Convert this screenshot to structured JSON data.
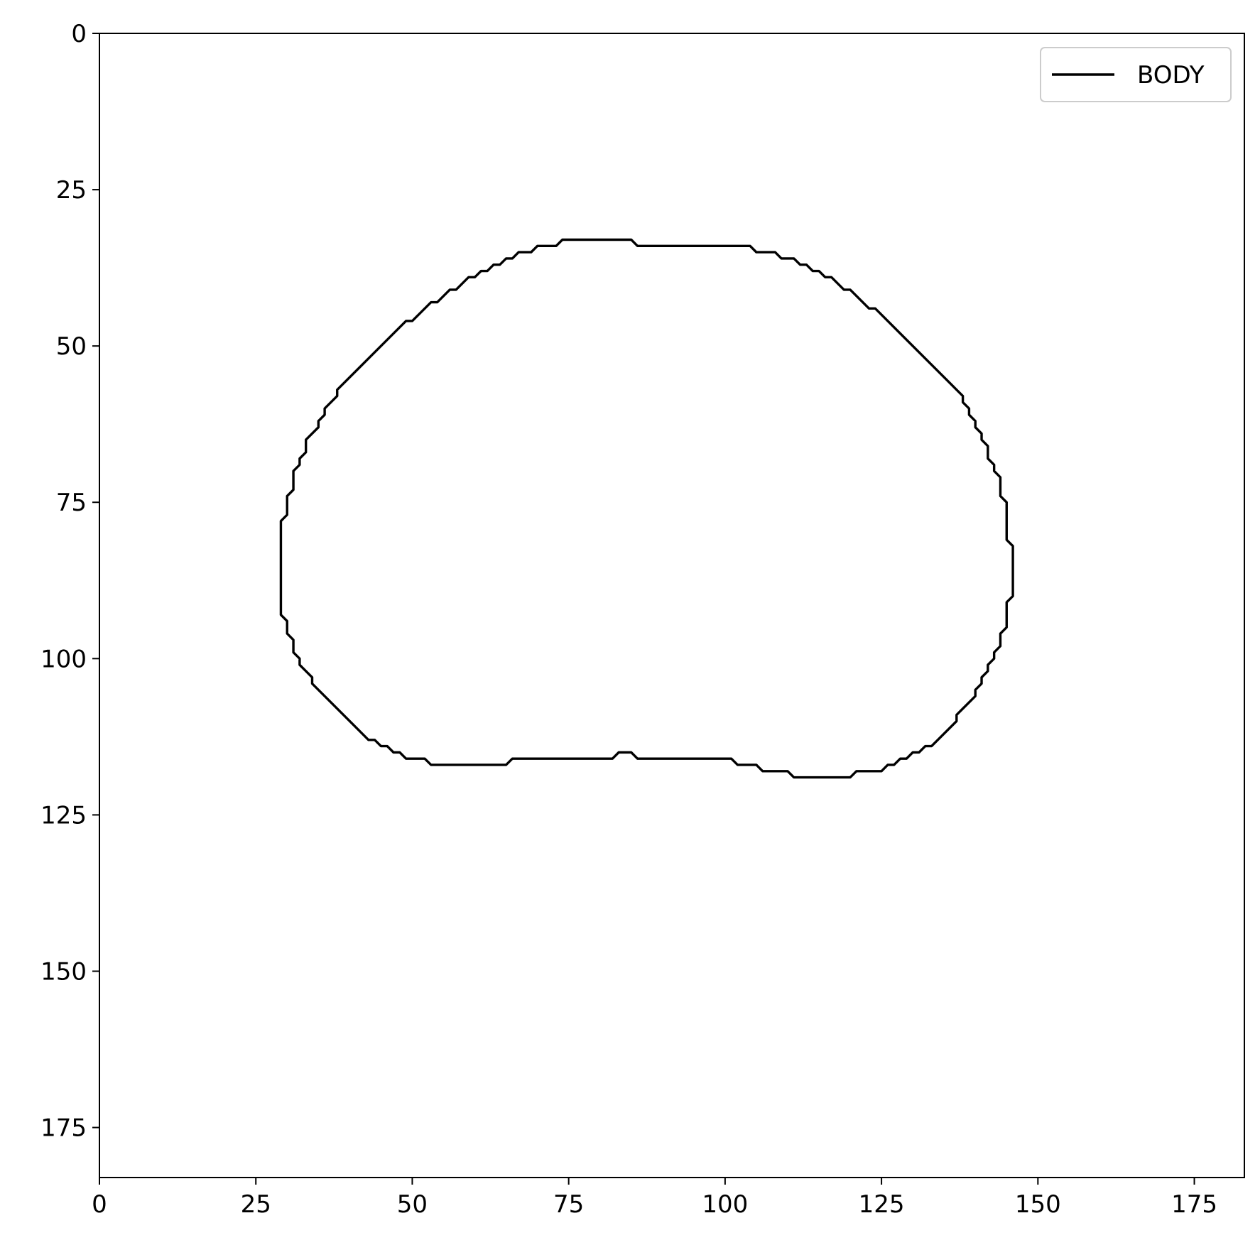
{
  "chart_data": {
    "type": "line",
    "title": "",
    "xlabel": "",
    "ylabel": "",
    "xlim": [
      0,
      183
    ],
    "ylim": [
      183,
      0
    ],
    "y_inverted": true,
    "grid": false,
    "legend": {
      "position": "top-right",
      "entries": [
        "BODY"
      ]
    },
    "xticks": [
      0,
      25,
      50,
      75,
      100,
      125,
      150,
      175
    ],
    "yticks": [
      0,
      25,
      50,
      75,
      100,
      125,
      150,
      175
    ],
    "xtick_labels": [
      "0",
      "25",
      "50",
      "75",
      "100",
      "125",
      "150",
      "175"
    ],
    "ytick_labels": [
      "0",
      "25",
      "50",
      "75",
      "100",
      "125",
      "150",
      "175"
    ],
    "series": [
      {
        "name": "BODY",
        "color": "#000000",
        "closed": true,
        "points": [
          [
            75,
            33
          ],
          [
            85,
            33
          ],
          [
            86,
            34
          ],
          [
            104,
            34
          ],
          [
            105,
            35
          ],
          [
            108,
            35
          ],
          [
            109,
            36
          ],
          [
            111,
            36
          ],
          [
            112,
            37
          ],
          [
            113,
            37
          ],
          [
            114,
            38
          ],
          [
            115,
            38
          ],
          [
            116,
            39
          ],
          [
            117,
            39
          ],
          [
            119,
            41
          ],
          [
            120,
            41
          ],
          [
            123,
            44
          ],
          [
            124,
            44
          ],
          [
            136,
            56
          ],
          [
            137,
            57
          ],
          [
            138,
            58
          ],
          [
            138,
            59
          ],
          [
            139,
            60
          ],
          [
            139,
            61
          ],
          [
            140,
            62
          ],
          [
            140,
            63
          ],
          [
            141,
            64
          ],
          [
            141,
            65
          ],
          [
            142,
            66
          ],
          [
            142,
            68
          ],
          [
            143,
            69
          ],
          [
            143,
            70
          ],
          [
            144,
            71
          ],
          [
            144,
            74
          ],
          [
            145,
            75
          ],
          [
            145,
            81
          ],
          [
            146,
            82
          ],
          [
            146,
            90
          ],
          [
            145,
            91
          ],
          [
            145,
            95
          ],
          [
            144,
            96
          ],
          [
            144,
            98
          ],
          [
            143,
            99
          ],
          [
            143,
            100
          ],
          [
            142,
            101
          ],
          [
            142,
            102
          ],
          [
            141,
            103
          ],
          [
            141,
            104
          ],
          [
            140,
            105
          ],
          [
            140,
            106
          ],
          [
            138,
            108
          ],
          [
            137,
            109
          ],
          [
            137,
            110
          ],
          [
            133,
            114
          ],
          [
            132,
            114
          ],
          [
            131,
            115
          ],
          [
            130,
            115
          ],
          [
            129,
            116
          ],
          [
            128,
            116
          ],
          [
            127,
            117
          ],
          [
            126,
            117
          ],
          [
            125,
            118
          ],
          [
            121,
            118
          ],
          [
            120,
            119
          ],
          [
            111,
            119
          ],
          [
            110,
            118
          ],
          [
            106,
            118
          ],
          [
            105,
            117
          ],
          [
            102,
            117
          ],
          [
            101,
            116
          ],
          [
            86,
            116
          ],
          [
            85,
            115
          ],
          [
            83,
            115
          ],
          [
            82,
            116
          ],
          [
            66,
            116
          ],
          [
            65,
            117
          ],
          [
            53,
            117
          ],
          [
            52,
            116
          ],
          [
            49,
            116
          ],
          [
            48,
            115
          ],
          [
            47,
            115
          ],
          [
            46,
            114
          ],
          [
            45,
            114
          ],
          [
            44,
            113
          ],
          [
            43,
            113
          ],
          [
            34,
            104
          ],
          [
            34,
            103
          ],
          [
            33,
            102
          ],
          [
            32,
            101
          ],
          [
            32,
            100
          ],
          [
            31,
            99
          ],
          [
            31,
            97
          ],
          [
            30,
            96
          ],
          [
            30,
            94
          ],
          [
            29,
            93
          ],
          [
            29,
            78
          ],
          [
            30,
            77
          ],
          [
            30,
            74
          ],
          [
            31,
            73
          ],
          [
            31,
            70
          ],
          [
            32,
            69
          ],
          [
            32,
            68
          ],
          [
            33,
            67
          ],
          [
            33,
            65
          ],
          [
            35,
            63
          ],
          [
            35,
            62
          ],
          [
            36,
            61
          ],
          [
            36,
            60
          ],
          [
            38,
            58
          ],
          [
            38,
            57
          ],
          [
            49,
            46
          ],
          [
            50,
            46
          ],
          [
            53,
            43
          ],
          [
            54,
            43
          ],
          [
            56,
            41
          ],
          [
            57,
            41
          ],
          [
            59,
            39
          ],
          [
            60,
            39
          ],
          [
            61,
            38
          ],
          [
            62,
            38
          ],
          [
            63,
            37
          ],
          [
            64,
            37
          ],
          [
            65,
            36
          ],
          [
            66,
            36
          ],
          [
            67,
            35
          ],
          [
            69,
            35
          ],
          [
            70,
            34
          ],
          [
            73,
            34
          ],
          [
            74,
            33
          ]
        ]
      }
    ]
  }
}
